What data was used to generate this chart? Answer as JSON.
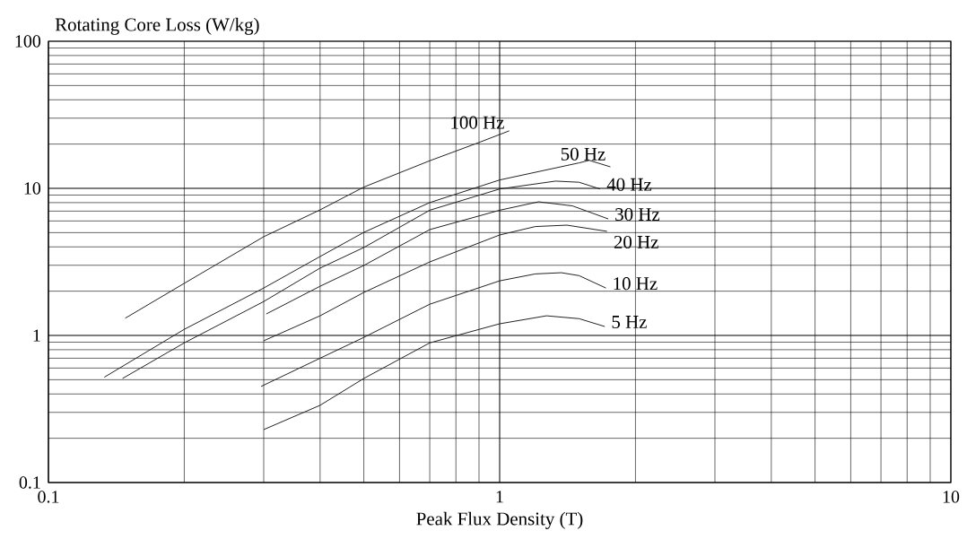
{
  "chart_data": {
    "type": "line",
    "xlabel": "Peak Flux Density (T)",
    "ylabel": "Rotating Core Loss (W/kg)",
    "log": "xy",
    "grid": true,
    "legend": false,
    "marker": "none",
    "line_style": "solid",
    "xlim": [
      0.1,
      10
    ],
    "ylim": [
      0.1,
      100
    ],
    "xticks": [
      0.1,
      1,
      10
    ],
    "yticks": [
      0.1,
      1,
      10,
      100
    ],
    "series": [
      {
        "name": "100 Hz",
        "color": "#222222",
        "x": [
          0.148,
          0.2,
          0.3,
          0.4,
          0.5,
          0.7,
          0.9,
          1.05
        ],
        "values": [
          1.31,
          2.26,
          4.69,
          7.14,
          10.2,
          15.4,
          20.5,
          24.6
        ]
      },
      {
        "name": "50 Hz",
        "color": "#222222",
        "x": [
          0.133,
          0.2,
          0.3,
          0.4,
          0.5,
          0.7,
          1.0,
          1.5,
          1.58,
          1.76
        ],
        "values": [
          0.52,
          1.1,
          2.1,
          3.44,
          5.02,
          8.0,
          11.4,
          14.9,
          15.5,
          14.0
        ]
      },
      {
        "name": "40 Hz",
        "color": "#222222",
        "x": [
          0.146,
          0.2,
          0.3,
          0.4,
          0.5,
          0.7,
          1.0,
          1.33,
          1.5,
          1.67
        ],
        "values": [
          0.51,
          0.89,
          1.7,
          2.87,
          3.96,
          7.1,
          9.9,
          11.2,
          11.0,
          9.9
        ]
      },
      {
        "name": "30 Hz",
        "color": "#222222",
        "x": [
          0.304,
          0.4,
          0.5,
          0.7,
          1.0,
          1.22,
          1.45,
          1.74
        ],
        "values": [
          1.4,
          2.16,
          2.99,
          5.24,
          7.1,
          8.1,
          7.6,
          6.2
        ]
      },
      {
        "name": "20 Hz",
        "color": "#222222",
        "x": [
          0.3,
          0.4,
          0.5,
          0.7,
          1.0,
          1.2,
          1.41,
          1.73
        ],
        "values": [
          0.92,
          1.36,
          1.96,
          3.16,
          4.82,
          5.5,
          5.62,
          5.1
        ]
      },
      {
        "name": "10 Hz",
        "color": "#222222",
        "x": [
          0.296,
          0.4,
          0.5,
          0.7,
          1.0,
          1.2,
          1.37,
          1.5,
          1.72
        ],
        "values": [
          0.45,
          0.7,
          0.97,
          1.63,
          2.35,
          2.62,
          2.67,
          2.55,
          2.1
        ]
      },
      {
        "name": "5 Hz",
        "color": "#222222",
        "x": [
          0.3,
          0.4,
          0.5,
          0.7,
          1.0,
          1.27,
          1.5,
          1.71
        ],
        "values": [
          0.229,
          0.335,
          0.51,
          0.89,
          1.2,
          1.36,
          1.3,
          1.15
        ]
      }
    ]
  }
}
